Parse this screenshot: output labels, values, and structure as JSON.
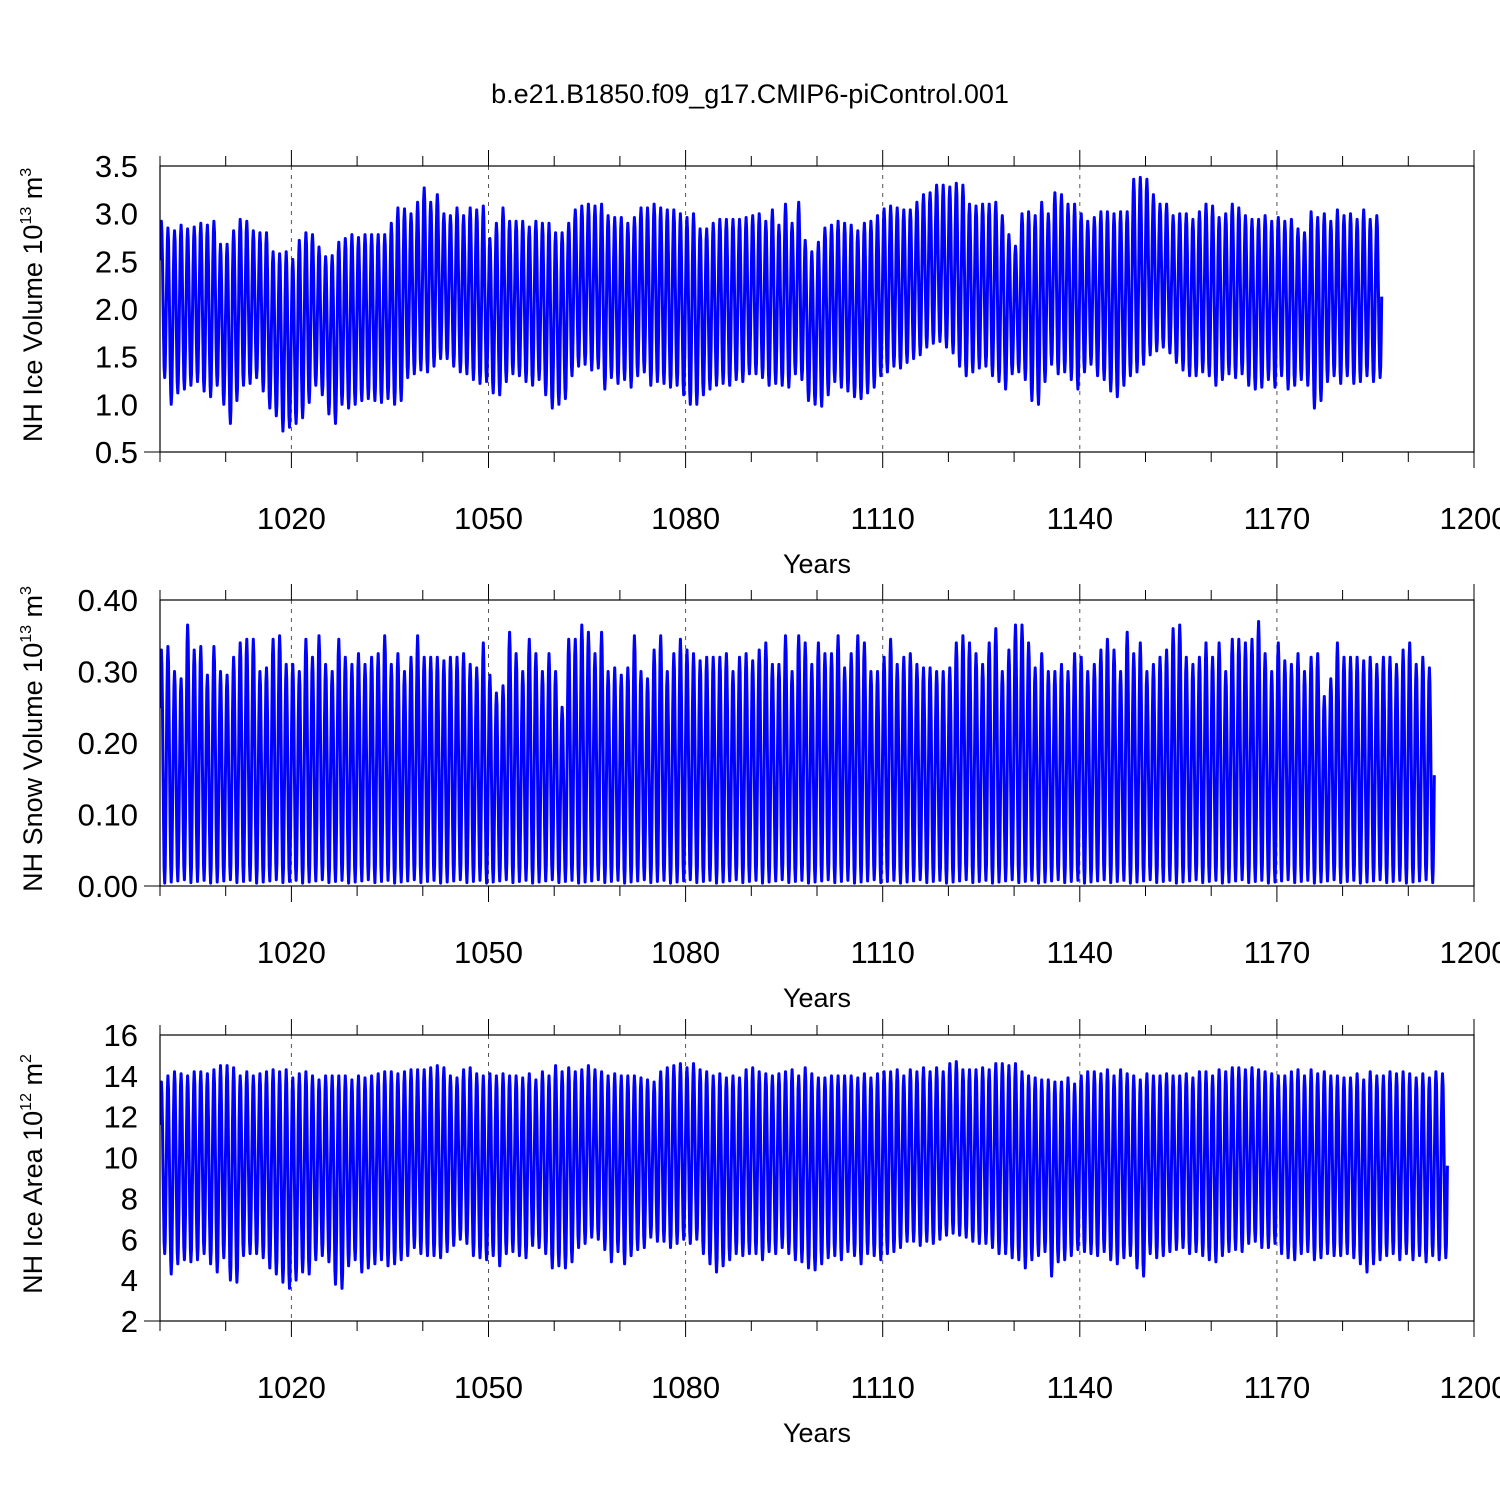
{
  "title": "b.e21.B1850.f09_g17.CMIP6-piControl.001",
  "chart_data": [
    {
      "type": "line",
      "ylabel_main": "NH Ice Volume 10",
      "ylabel_exp": "13",
      "ylabel_unit": " m",
      "ylabel_unit_exp": "3",
      "xlabel": "Years",
      "xlim": [
        1000,
        1200
      ],
      "ylim": [
        0.5,
        3.5
      ],
      "x_ticks": [
        1020,
        1050,
        1080,
        1110,
        1140,
        1170,
        1200
      ],
      "y_ticks": [
        "0.5",
        "1.0",
        "1.5",
        "2.0",
        "2.5",
        "3.0",
        "3.5"
      ],
      "color": "#0000ff",
      "grid": "vertical dashed at major x ticks",
      "seasonal_cycle": "annual (monthly data)",
      "annual_max": [
        2.92,
        2.85,
        2.82,
        2.88,
        2.84,
        2.86,
        2.9,
        2.88,
        2.92,
        2.68,
        2.68,
        2.82,
        2.94,
        2.92,
        2.82,
        2.8,
        2.8,
        2.6,
        2.58,
        2.6,
        2.52,
        2.72,
        2.8,
        2.78,
        2.65,
        2.55,
        2.56,
        2.7,
        2.74,
        2.78,
        2.75,
        2.78,
        2.78,
        2.78,
        2.78,
        2.9,
        3.06,
        3.05,
        3.0,
        3.12,
        3.27,
        3.12,
        3.2,
        3.0,
        2.98,
        3.06,
        2.98,
        3.06,
        3.04,
        3.08,
        2.74,
        2.9,
        3.06,
        2.92,
        2.92,
        2.92,
        2.86,
        2.92,
        2.9,
        2.9,
        2.8,
        2.8,
        2.9,
        3.04,
        3.08,
        3.1,
        3.08,
        3.1,
        2.98,
        2.96,
        2.96,
        2.9,
        2.96,
        3.06,
        3.06,
        3.1,
        3.06,
        3.04,
        3.04,
        3.0,
        2.96,
        3.0,
        2.84,
        2.84,
        2.9,
        2.94,
        2.94,
        2.94,
        2.94,
        2.96,
        2.98,
        3.0,
        2.92,
        3.04,
        2.88,
        3.1,
        2.9,
        3.12,
        2.72,
        2.6,
        2.7,
        2.85,
        2.88,
        2.92,
        2.9,
        2.88,
        2.82,
        2.9,
        2.92,
        2.98,
        3.05,
        3.08,
        3.06,
        3.04,
        3.04,
        3.12,
        3.2,
        3.22,
        3.3,
        3.3,
        3.28,
        3.32,
        3.3,
        3.1,
        3.08,
        3.1,
        3.1,
        3.12,
        2.98,
        2.78,
        2.66,
        3.0,
        3.02,
        2.98,
        3.12,
        3.0,
        3.22,
        3.2,
        3.1,
        3.1,
        3.0,
        2.92,
        2.96,
        3.02,
        3.02,
        3.0,
        3.02,
        3.02,
        3.36,
        3.38,
        3.36,
        3.2,
        3.1,
        3.1,
        2.98,
        3.0,
        3.0,
        2.94,
        3.02,
        3.1,
        3.08,
        2.96,
        3.0,
        3.1,
        3.06,
        2.98,
        2.94,
        2.94,
        2.98,
        2.92,
        2.96,
        2.92,
        2.94,
        2.84,
        2.8,
        3.02,
        2.96,
        3.0,
        2.92,
        3.04,
        2.98,
        3.0,
        2.94,
        3.04,
        2.94,
        2.98
      ],
      "annual_min": [
        1.28,
        1.0,
        1.12,
        1.16,
        1.2,
        1.24,
        1.14,
        1.08,
        1.2,
        1.0,
        0.8,
        1.04,
        1.2,
        1.22,
        1.28,
        1.14,
        0.96,
        0.88,
        0.72,
        0.76,
        0.8,
        0.86,
        1.02,
        1.2,
        1.1,
        0.9,
        0.8,
        1.0,
        0.96,
        1.0,
        1.04,
        1.06,
        1.04,
        1.02,
        1.06,
        1.0,
        1.04,
        1.28,
        1.32,
        1.36,
        1.34,
        1.4,
        1.48,
        1.48,
        1.4,
        1.34,
        1.32,
        1.26,
        1.22,
        1.24,
        1.12,
        1.1,
        1.24,
        1.32,
        1.3,
        1.24,
        1.2,
        1.26,
        1.1,
        0.96,
        1.0,
        1.06,
        1.3,
        1.4,
        1.42,
        1.36,
        1.38,
        1.16,
        1.28,
        1.22,
        1.26,
        1.18,
        1.3,
        1.34,
        1.2,
        1.24,
        1.22,
        1.18,
        1.2,
        1.1,
        1.0,
        1.0,
        1.1,
        1.16,
        1.2,
        1.22,
        1.2,
        1.26,
        1.24,
        1.32,
        1.32,
        1.28,
        1.2,
        1.22,
        1.2,
        1.18,
        1.32,
        1.26,
        1.04,
        1.0,
        0.98,
        1.1,
        1.24,
        1.18,
        1.14,
        1.08,
        1.06,
        1.12,
        1.18,
        1.3,
        1.34,
        1.4,
        1.38,
        1.44,
        1.48,
        1.52,
        1.6,
        1.64,
        1.66,
        1.6,
        1.54,
        1.4,
        1.3,
        1.34,
        1.38,
        1.4,
        1.3,
        1.24,
        1.16,
        1.32,
        1.34,
        1.26,
        1.04,
        1.0,
        1.24,
        1.42,
        1.32,
        1.34,
        1.26,
        1.16,
        1.34,
        1.42,
        1.3,
        1.26,
        1.14,
        1.08,
        1.2,
        1.3,
        1.34,
        1.42,
        1.52,
        1.56,
        1.6,
        1.54,
        1.44,
        1.36,
        1.3,
        1.3,
        1.34,
        1.3,
        1.2,
        1.26,
        1.32,
        1.28,
        1.32,
        1.2,
        1.16,
        1.18,
        1.26,
        1.18,
        1.3,
        1.16,
        1.2,
        1.26,
        1.2,
        0.96,
        1.04,
        1.24,
        1.3,
        1.22,
        1.3,
        1.22,
        1.24,
        1.3,
        1.24,
        1.28
      ]
    },
    {
      "type": "line",
      "ylabel_main": "NH Snow Volume 10",
      "ylabel_exp": "13",
      "ylabel_unit": " m",
      "ylabel_unit_exp": "3",
      "xlabel": "Years",
      "xlim": [
        1000,
        1200
      ],
      "ylim": [
        0.0,
        0.4
      ],
      "x_ticks": [
        1020,
        1050,
        1080,
        1110,
        1140,
        1170,
        1200
      ],
      "y_ticks": [
        "0.00",
        "0.10",
        "0.20",
        "0.30",
        "0.40"
      ],
      "color": "#0000ff",
      "grid": "vertical dashed at major x ticks",
      "seasonal_cycle": "annual (monthly data)",
      "annual_max": [
        0.33,
        0.335,
        0.3,
        0.29,
        0.365,
        0.33,
        0.335,
        0.295,
        0.335,
        0.3,
        0.295,
        0.32,
        0.34,
        0.345,
        0.345,
        0.3,
        0.305,
        0.345,
        0.35,
        0.31,
        0.31,
        0.3,
        0.345,
        0.32,
        0.35,
        0.31,
        0.3,
        0.345,
        0.32,
        0.31,
        0.325,
        0.31,
        0.32,
        0.325,
        0.35,
        0.31,
        0.325,
        0.3,
        0.32,
        0.35,
        0.32,
        0.32,
        0.32,
        0.315,
        0.32,
        0.32,
        0.325,
        0.31,
        0.305,
        0.34,
        0.295,
        0.27,
        0.28,
        0.355,
        0.325,
        0.3,
        0.345,
        0.325,
        0.3,
        0.325,
        0.3,
        0.25,
        0.345,
        0.345,
        0.365,
        0.355,
        0.325,
        0.355,
        0.3,
        0.305,
        0.295,
        0.305,
        0.35,
        0.3,
        0.29,
        0.33,
        0.35,
        0.3,
        0.325,
        0.345,
        0.33,
        0.325,
        0.315,
        0.32,
        0.32,
        0.32,
        0.325,
        0.3,
        0.32,
        0.325,
        0.315,
        0.33,
        0.34,
        0.31,
        0.31,
        0.35,
        0.3,
        0.35,
        0.34,
        0.31,
        0.34,
        0.325,
        0.325,
        0.35,
        0.305,
        0.325,
        0.35,
        0.34,
        0.3,
        0.3,
        0.32,
        0.345,
        0.31,
        0.32,
        0.325,
        0.31,
        0.305,
        0.305,
        0.3,
        0.3,
        0.305,
        0.34,
        0.35,
        0.34,
        0.325,
        0.31,
        0.34,
        0.36,
        0.3,
        0.33,
        0.365,
        0.365,
        0.34,
        0.305,
        0.325,
        0.3,
        0.3,
        0.31,
        0.3,
        0.325,
        0.32,
        0.3,
        0.31,
        0.33,
        0.345,
        0.33,
        0.3,
        0.355,
        0.325,
        0.34,
        0.3,
        0.31,
        0.32,
        0.33,
        0.36,
        0.365,
        0.32,
        0.31,
        0.32,
        0.34,
        0.32,
        0.34,
        0.3,
        0.345,
        0.345,
        0.34,
        0.345,
        0.37,
        0.325,
        0.3,
        0.34,
        0.315,
        0.31,
        0.325,
        0.3,
        0.32,
        0.325,
        0.265,
        0.29,
        0.34,
        0.32,
        0.32,
        0.32,
        0.315,
        0.32,
        0.31,
        0.32,
        0.32,
        0.31,
        0.33,
        0.34,
        0.31,
        0.32,
        0.305
      ]
    },
    {
      "type": "line",
      "ylabel_main": "NH Ice Area 10",
      "ylabel_exp": "12",
      "ylabel_unit": " m",
      "ylabel_unit_exp": "2",
      "xlabel": "Years",
      "xlim": [
        1000,
        1200
      ],
      "ylim": [
        2,
        16
      ],
      "x_ticks": [
        1020,
        1050,
        1080,
        1110,
        1140,
        1170,
        1200
      ],
      "y_ticks": [
        "2",
        "4",
        "6",
        "8",
        "10",
        "12",
        "14",
        "16"
      ],
      "color": "#0000ff",
      "grid": "vertical dashed at major x ticks",
      "seasonal_cycle": "annual (monthly data)",
      "annual_max": [
        13.7,
        14.0,
        14.2,
        14.1,
        14.0,
        14.2,
        14.2,
        14.1,
        14.3,
        14.5,
        14.5,
        14.4,
        14.0,
        14.2,
        14.0,
        14.1,
        14.2,
        14.3,
        14.2,
        14.3,
        13.9,
        14.1,
        14.2,
        14.0,
        13.8,
        14.0,
        14.0,
        14.0,
        14.0,
        13.8,
        14.0,
        13.9,
        14.0,
        14.1,
        14.2,
        14.2,
        14.1,
        14.2,
        14.3,
        14.3,
        14.3,
        14.4,
        14.5,
        14.4,
        14.0,
        13.9,
        14.3,
        14.4,
        14.1,
        14.0,
        14.1,
        14.0,
        14.1,
        14.0,
        14.0,
        13.9,
        14.1,
        13.8,
        14.2,
        14.0,
        14.5,
        14.2,
        14.4,
        14.2,
        14.3,
        14.5,
        14.3,
        14.2,
        14.0,
        14.1,
        14.0,
        14.0,
        14.0,
        13.9,
        13.8,
        13.7,
        14.2,
        14.4,
        14.5,
        14.6,
        14.4,
        14.6,
        14.3,
        14.2,
        14.0,
        14.1,
        13.9,
        14.0,
        13.9,
        14.3,
        14.4,
        14.2,
        14.1,
        14.0,
        14.1,
        14.2,
        14.3,
        14.0,
        14.4,
        14.1,
        13.9,
        13.9,
        14.0,
        14.0,
        14.0,
        14.0,
        13.9,
        14.1,
        13.9,
        14.1,
        14.2,
        14.2,
        14.3,
        14.0,
        14.3,
        14.2,
        14.4,
        14.2,
        14.4,
        14.2,
        14.6,
        14.7,
        14.3,
        14.3,
        14.3,
        14.4,
        14.3,
        14.6,
        14.6,
        14.5,
        14.6,
        14.2,
        14.0,
        13.9,
        13.8,
        13.8,
        13.7,
        13.7,
        13.9,
        13.6,
        14.0,
        14.2,
        14.2,
        14.1,
        14.3,
        14.0,
        14.3,
        14.1,
        14.0,
        13.8,
        14.1,
        14.0,
        14.0,
        14.1,
        14.0,
        14.0,
        14.1,
        13.9,
        14.2,
        14.2,
        14.0,
        14.3,
        14.2,
        14.4,
        14.4,
        14.3,
        14.4,
        14.3,
        14.2,
        14.1,
        14.0,
        14.0,
        14.2,
        14.3,
        14.0,
        14.3,
        14.1,
        14.2,
        14.0,
        14.0,
        13.9,
        13.9,
        14.1,
        13.8,
        14.2,
        14.0,
        14.0,
        14.2,
        14.1,
        14.2,
        14.1,
        13.9,
        14.1,
        13.9,
        14.2,
        14.1,
        14.1,
        14.2
      ],
      "annual_min": [
        5.3,
        4.3,
        4.8,
        5.0,
        4.9,
        5.0,
        5.3,
        4.8,
        4.4,
        5.1,
        4.0,
        3.9,
        5.2,
        5.3,
        5.3,
        5.1,
        4.6,
        4.3,
        3.9,
        3.6,
        4.0,
        4.4,
        4.3,
        5.0,
        5.2,
        4.9,
        3.8,
        3.6,
        4.7,
        5.0,
        4.4,
        4.6,
        4.8,
        5.0,
        4.7,
        4.8,
        5.0,
        5.2,
        5.6,
        5.3,
        5.2,
        5.2,
        5.1,
        5.4,
        5.7,
        6.0,
        5.8,
        5.2,
        5.1,
        5.0,
        5.2,
        4.7,
        5.3,
        5.4,
        5.2,
        5.1,
        5.7,
        5.6,
        5.3,
        4.6,
        4.7,
        4.6,
        4.9,
        5.6,
        5.8,
        6.1,
        6.0,
        5.5,
        4.9,
        5.4,
        4.8,
        5.2,
        5.5,
        5.6,
        6.1,
        5.9,
        5.9,
        5.6,
        5.8,
        6.0,
        5.8,
        6.0,
        5.3,
        4.8,
        4.4,
        4.7,
        5.0,
        5.3,
        5.2,
        5.3,
        5.3,
        5.0,
        5.4,
        5.3,
        5.6,
        5.3,
        5.0,
        4.9,
        4.6,
        4.5,
        4.8,
        5.1,
        5.2,
        5.0,
        5.4,
        5.2,
        4.8,
        5.3,
        5.2,
        5.0,
        5.3,
        5.4,
        5.6,
        5.9,
        5.9,
        5.7,
        5.9,
        5.8,
        6.0,
        6.2,
        6.3,
        6.2,
        6.1,
        5.9,
        5.8,
        5.8,
        5.6,
        5.3,
        5.3,
        5.1,
        5.0,
        4.6,
        5.0,
        5.2,
        5.4,
        4.2,
        4.9,
        5.0,
        5.2,
        5.5,
        5.4,
        5.3,
        5.2,
        5.4,
        5.0,
        4.8,
        5.1,
        5.2,
        4.6,
        4.2,
        5.3,
        5.1,
        5.2,
        5.4,
        5.5,
        5.6,
        5.3,
        5.4,
        5.2,
        5.0,
        4.9,
        5.2,
        5.4,
        5.5,
        5.4,
        5.8,
        5.9,
        5.6,
        5.6,
        5.8,
        5.3,
        5.1,
        5.0,
        5.3,
        5.4,
        5.0,
        5.1,
        5.3,
        5.2,
        5.2,
        5.3,
        5.1,
        4.8,
        4.4,
        4.8,
        5.0,
        5.2,
        5.3,
        5.0,
        5.3,
        5.0,
        5.2,
        4.9,
        5.2,
        5.0,
        5.1
      ]
    }
  ]
}
